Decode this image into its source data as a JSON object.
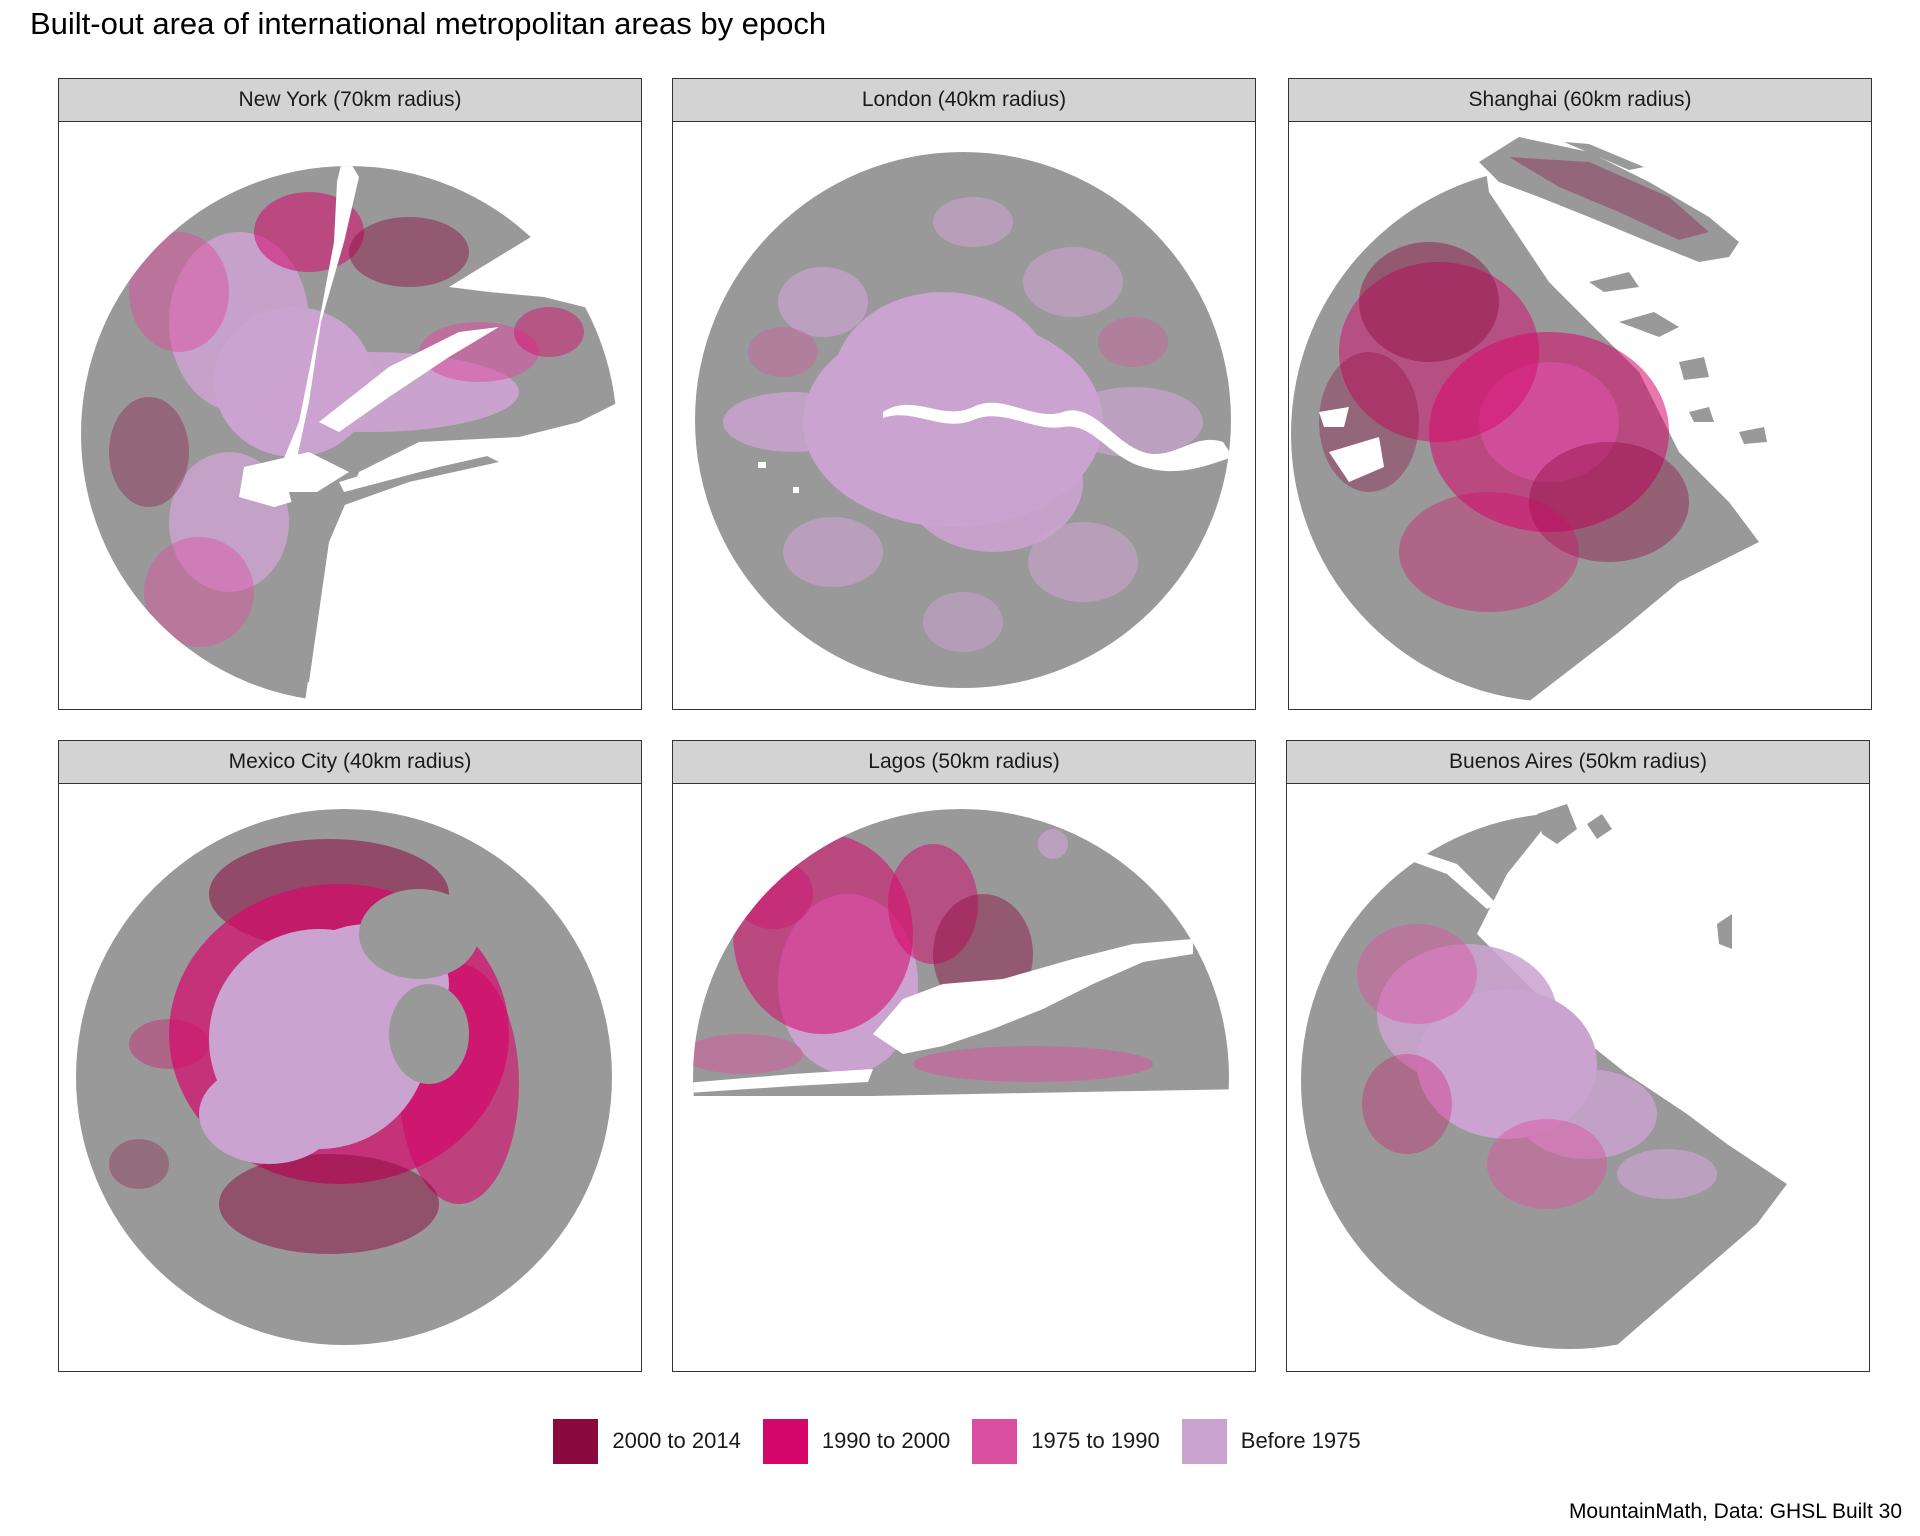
{
  "title": "Built-out area of international metropolitan areas by epoch",
  "caption": "MountainMath, Data: GHSL Built 30",
  "colors": {
    "unbuilt": "#999999",
    "water": "#ffffff",
    "epochs": [
      "#8b0a3e",
      "#d6076b",
      "#db4fa0",
      "#cba3d0"
    ]
  },
  "legend": [
    {
      "label": "2000 to 2014",
      "color": "#8b0a3e"
    },
    {
      "label": "1990 to 2000",
      "color": "#d6076b"
    },
    {
      "label": "1975 to 1990",
      "color": "#db4fa0"
    },
    {
      "label": "Before 1975",
      "color": "#cba3d0"
    }
  ],
  "panels": [
    {
      "name": "New York (70km radius)"
    },
    {
      "name": "London (40km radius)"
    },
    {
      "name": "Shanghai (60km radius)"
    },
    {
      "name": "Mexico City (40km radius)"
    },
    {
      "name": "Lagos (50km radius)"
    },
    {
      "name": "Buenos Aires (50km radius)"
    }
  ]
}
